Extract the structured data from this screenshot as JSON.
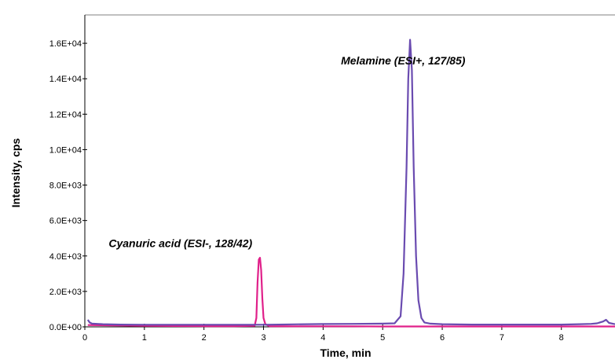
{
  "chart_data": {
    "type": "line",
    "xlabel": "Time, min",
    "ylabel": "Intensity, cps",
    "xlim": [
      0,
      8.9
    ],
    "ylim": [
      0,
      17600
    ],
    "x_ticks": [
      "0",
      "1",
      "2",
      "3",
      "4",
      "5",
      "6",
      "7",
      "8"
    ],
    "y_ticks": [
      "0.0E+00",
      "2.0E+03",
      "4.0E+03",
      "6.0E+03",
      "8.0E+03",
      "1.0E+04",
      "1.2E+04",
      "1.4E+04",
      "1.6E+04"
    ],
    "grid": false,
    "series": [
      {
        "color": "#e0208a",
        "x": [
          0.05,
          0.5,
          1.0,
          1.5,
          2.0,
          2.5,
          2.85,
          2.88,
          2.9,
          2.92,
          2.94,
          2.96,
          2.98,
          3.0,
          3.03,
          3.1,
          3.5,
          4.0,
          4.5,
          5.0,
          5.5,
          6.0,
          6.5,
          7.0,
          7.5,
          8.0,
          8.5,
          8.9
        ],
        "values": [
          100,
          80,
          60,
          50,
          40,
          40,
          60,
          500,
          2500,
          3800,
          3900,
          3200,
          1600,
          500,
          150,
          40,
          30,
          30,
          30,
          20,
          20,
          20,
          20,
          20,
          20,
          20,
          20,
          20
        ]
      },
      {
        "color": "#6a4bb0",
        "x": [
          0.05,
          0.08,
          0.12,
          0.3,
          0.6,
          1.0,
          1.5,
          2.0,
          2.5,
          3.0,
          3.5,
          4.0,
          4.5,
          5.0,
          5.2,
          5.3,
          5.35,
          5.4,
          5.43,
          5.46,
          5.49,
          5.52,
          5.56,
          5.6,
          5.65,
          5.7,
          5.8,
          6.0,
          6.5,
          7.0,
          7.5,
          8.0,
          8.3,
          8.5,
          8.6,
          8.7,
          8.75,
          8.8,
          8.9
        ],
        "values": [
          400,
          250,
          180,
          150,
          130,
          120,
          120,
          120,
          120,
          120,
          140,
          160,
          170,
          180,
          200,
          600,
          3000,
          9000,
          14000,
          16200,
          14500,
          9000,
          4000,
          1500,
          500,
          250,
          180,
          150,
          130,
          130,
          130,
          130,
          150,
          170,
          200,
          300,
          400,
          220,
          150
        ]
      }
    ],
    "annotations": [
      {
        "text": "Melamine (ESI+, 127/85)",
        "x": 4.3,
        "y": 14800
      },
      {
        "text": "Cyanuric acid (ESI-, 128/42)",
        "x": 0.4,
        "y": 4500
      }
    ]
  }
}
